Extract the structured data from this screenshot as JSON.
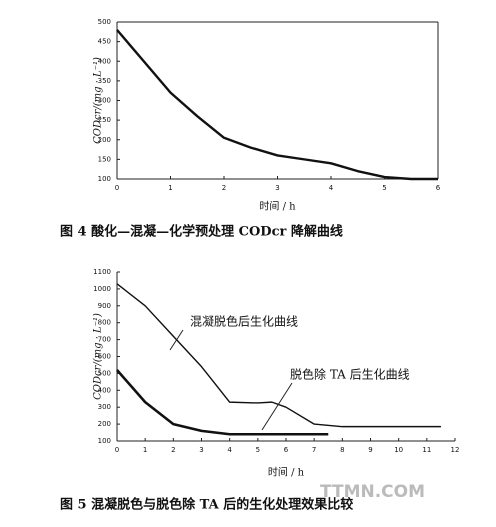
{
  "chart_data": [
    {
      "type": "line",
      "title": "图 4  酸化—混凝—化学预处理 CODcr 降解曲线",
      "x_label": "时间 / h",
      "y_label": "CODcr/(mg · L⁻¹)",
      "color": "#111",
      "x": [
        0,
        0.5,
        1,
        1.5,
        2,
        2.5,
        3,
        3.5,
        4,
        4.5,
        5,
        5.5,
        6
      ],
      "values": [
        480,
        400,
        320,
        260,
        205,
        180,
        160,
        150,
        140,
        120,
        105,
        100,
        100
      ],
      "xlim": [
        0,
        6
      ],
      "xticks": [
        0,
        1,
        2,
        3,
        4,
        5,
        6
      ],
      "ylim": [
        100,
        500
      ],
      "yticks": [
        100,
        150,
        200,
        250,
        300,
        350,
        400,
        450,
        500
      ]
    },
    {
      "type": "line",
      "title": "图 5  混凝脱色与脱色除 TA 后的生化处理效果比较",
      "x_label": "时间 / h",
      "y_label": "CODcr/(mg · L⁻¹)",
      "watermark": "TTMN.COM",
      "series": [
        {
          "name": "混凝脱色后生化曲线",
          "color": "#111",
          "x": [
            0,
            1,
            2,
            3,
            4,
            5,
            5.5,
            6,
            7,
            8,
            9,
            10,
            11,
            11.5
          ],
          "values": [
            1030,
            900,
            720,
            540,
            330,
            325,
            330,
            300,
            200,
            185,
            185,
            185,
            185,
            185
          ]
        },
        {
          "name": "脱色除 TA 后生化曲线",
          "color": "#111",
          "x": [
            0,
            1,
            2,
            3,
            4,
            5,
            6,
            7,
            7.5
          ],
          "values": [
            520,
            330,
            200,
            160,
            140,
            140,
            140,
            140,
            140
          ]
        }
      ],
      "xlim": [
        0,
        12
      ],
      "xticks": [
        0,
        1,
        2,
        3,
        4,
        5,
        6,
        7,
        8,
        9,
        10,
        11,
        12
      ],
      "ylim": [
        100,
        1100
      ],
      "yticks": [
        100,
        200,
        300,
        400,
        500,
        600,
        700,
        800,
        900,
        1000,
        1100
      ]
    }
  ]
}
